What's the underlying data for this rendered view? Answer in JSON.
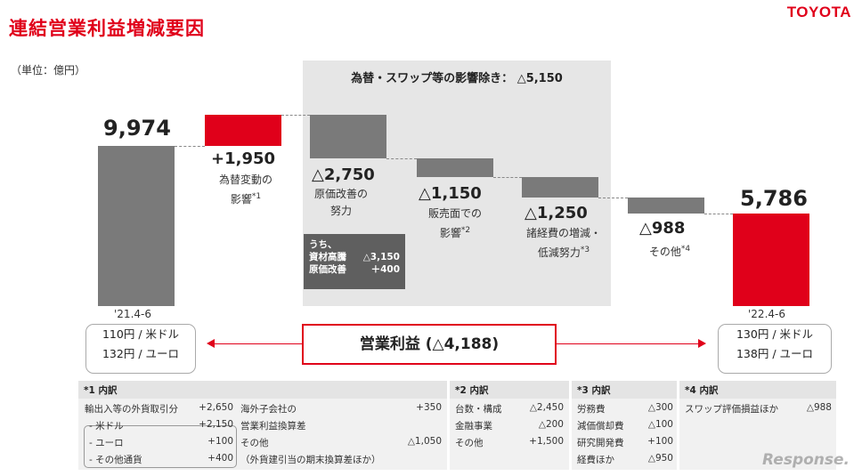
{
  "header": {
    "title": "連結営業利益増減要因",
    "logo": "TOYOTA",
    "unit": "（単位：億円）"
  },
  "chart_data": {
    "type": "waterfall",
    "title": "連結営業利益増減要因",
    "unit": "億円",
    "fx_panel_label": "為替・スワップ等の影響除き：  △5,150",
    "steps": [
      {
        "label": "'21.4-6",
        "value": 9974,
        "kind": "total",
        "color": "#7a7a7a",
        "value_text": "9,974"
      },
      {
        "label": "為替変動の影響*1",
        "value": 1950,
        "kind": "delta",
        "color": "#e0001a",
        "value_text": "+1,950"
      },
      {
        "label": "原価改善の努力",
        "value": -2750,
        "kind": "delta",
        "color": "#7a7a7a",
        "value_text": "△2,750"
      },
      {
        "label": "販売面での影響*2",
        "value": -1150,
        "kind": "delta",
        "color": "#7a7a7a",
        "value_text": "△1,150"
      },
      {
        "label": "諸経費の増減・低減努力*3",
        "value": -1250,
        "kind": "delta",
        "color": "#7a7a7a",
        "value_text": "△1,250"
      },
      {
        "label": "その他*4",
        "value": -988,
        "kind": "delta",
        "color": "#7a7a7a",
        "value_text": "△988"
      },
      {
        "label": "'22.4-6",
        "value": 5786,
        "kind": "total",
        "color": "#e0001a",
        "value_text": "5,786"
      }
    ],
    "annotation": {
      "title": "うち、",
      "rows": [
        {
          "label": "資材高騰",
          "value": "△3,150"
        },
        {
          "label": "原価改善",
          "value": "＋400"
        }
      ]
    }
  },
  "labels": {
    "fx_line1": "為替変動の",
    "fx_line2": "影響",
    "fx_sup": "*1",
    "cost_line1": "原価改善の",
    "cost_line2": "努力",
    "sales_line1": "販売面での",
    "sales_line2": "影響",
    "sales_sup": "*2",
    "exp_line1": "諸経費の増減・",
    "exp_line2": "低減努力",
    "exp_sup": "*3",
    "other_line1": "その他",
    "other_sup": "*4"
  },
  "periods": {
    "start": {
      "label": "'21.4-6",
      "rate_usd": "110円 / 米ドル",
      "rate_eur": "132円 / ユーロ"
    },
    "end": {
      "label": "'22.4-6",
      "rate_usd": "130円 / 米ドル",
      "rate_eur": "138円 / ユーロ"
    }
  },
  "operating_profit": "営業利益 (△4,188)",
  "footnotes": {
    "fn1": {
      "head": "*1 内訳",
      "rows": [
        {
          "label": "輸出入等の外貨取引分",
          "value": "+2,650"
        },
        {
          "label": "- 米ドル",
          "value": "+2,150"
        },
        {
          "label": "- ユーロ",
          "value": "+100"
        },
        {
          "label": "- その他通貨",
          "value": "+400"
        }
      ],
      "rows2": [
        {
          "label": "海外子会社の",
          "value": "+350"
        },
        {
          "label": "営業利益換算差",
          "value": ""
        },
        {
          "label": "その他",
          "value": "△1,050"
        },
        {
          "label": "（外貨建引当の期末換算差ほか）",
          "value": ""
        }
      ]
    },
    "fn2": {
      "head": "*2 内訳",
      "rows": [
        {
          "label": "台数・構成",
          "value": "△2,450"
        },
        {
          "label": "金融事業",
          "value": "△200"
        },
        {
          "label": "その他",
          "value": "+1,500"
        }
      ]
    },
    "fn3": {
      "head": "*3 内訳",
      "rows": [
        {
          "label": "労務費",
          "value": "△300"
        },
        {
          "label": "減価償却費",
          "value": "△100"
        },
        {
          "label": "研究開発費",
          "value": "+100"
        },
        {
          "label": "経費ほか",
          "value": "△950"
        }
      ]
    },
    "fn4": {
      "head": "*4 内訳",
      "rows": [
        {
          "label": "スワップ評価損益ほか",
          "value": "△988"
        }
      ]
    }
  },
  "watermark": "Response."
}
